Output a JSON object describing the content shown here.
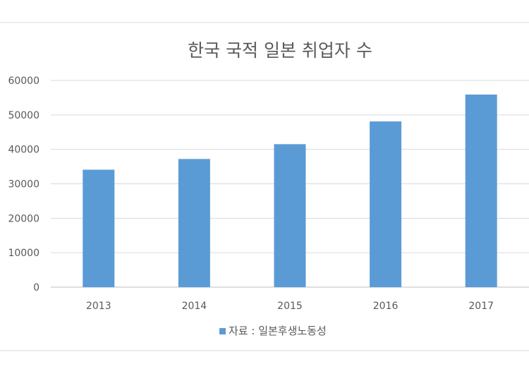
{
  "chart_data": {
    "type": "bar",
    "title": "한국 국적 일본 취업자 수",
    "categories": [
      "2013",
      "2014",
      "2015",
      "2016",
      "2017"
    ],
    "series": [
      {
        "name": "자료 : 일본후생노동성",
        "values": [
          34100,
          37200,
          41500,
          48100,
          55900
        ]
      }
    ],
    "y_ticks": [
      "0",
      "10000",
      "20000",
      "30000",
      "40000",
      "50000",
      "60000"
    ],
    "ylim": [
      0,
      60000
    ],
    "grid": true,
    "legend_position": "bottom",
    "bar_color": "#5b9bd5"
  }
}
